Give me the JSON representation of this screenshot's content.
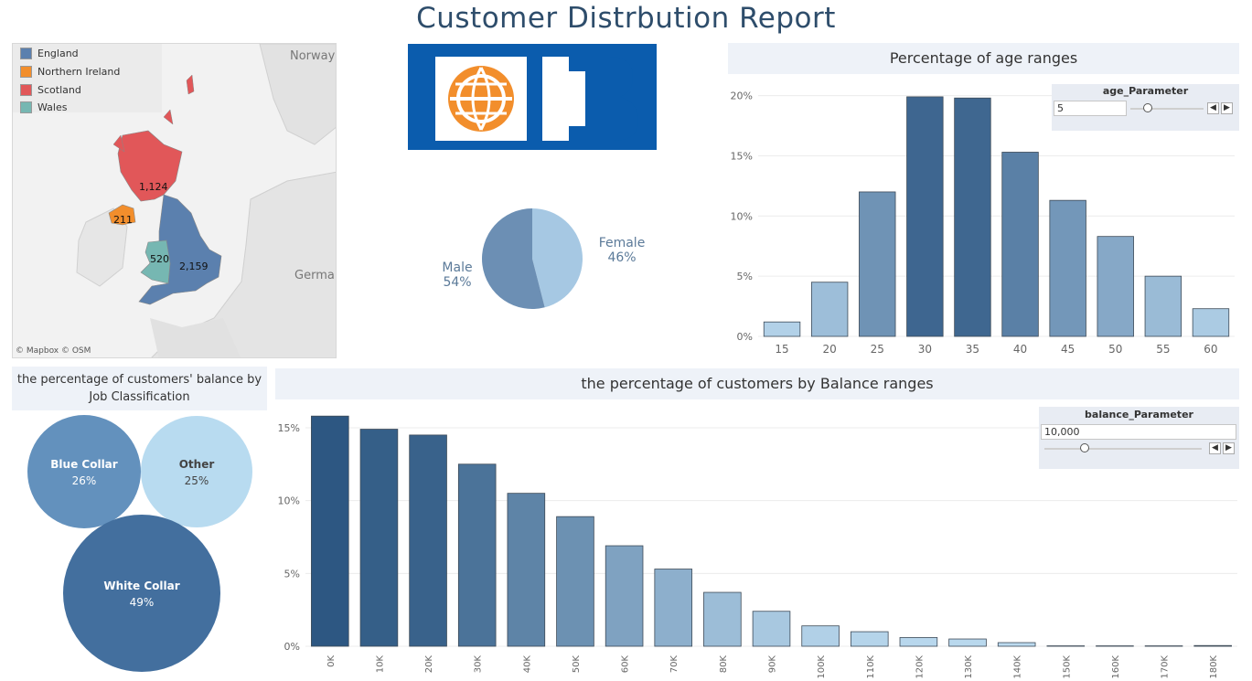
{
  "title": "Customer Distrbution Report",
  "colors": {
    "england": "#5b80ae",
    "northern_ireland": "#f28e2c",
    "scotland": "#e15759",
    "wales": "#76b7b2",
    "male": "#6c8fb4",
    "female": "#a6c8e3"
  },
  "map": {
    "legend": [
      {
        "label": "England",
        "color": "#5b80ae"
      },
      {
        "label": "Northern Ireland",
        "color": "#f28e2c"
      },
      {
        "label": "Scotland",
        "color": "#e15759"
      },
      {
        "label": "Wales",
        "color": "#76b7b2"
      }
    ],
    "values": {
      "scotland": "1,124",
      "northern_ireland": "211",
      "wales": "520",
      "england": "2,159"
    },
    "places": {
      "norway": "Norway",
      "germany": "Germa"
    },
    "credit": "© Mapbox  © OSM"
  },
  "gender": {
    "male": {
      "label": "Male",
      "pct": "54%",
      "value": 54
    },
    "female": {
      "label": "Female",
      "pct": "46%",
      "value": 46
    }
  },
  "age_chart": {
    "header": "Percentage of age ranges",
    "parameter": {
      "name": "age_Parameter",
      "value": "5"
    }
  },
  "job_chart": {
    "header": "the percentage of customers' balance by Job Classification",
    "bubbles": [
      {
        "label": "Blue Collar",
        "pct": "26%"
      },
      {
        "label": "Other",
        "pct": "25%"
      },
      {
        "label": "White Collar",
        "pct": "49%"
      }
    ]
  },
  "balance_chart": {
    "header": "the percentage of customers by Balance ranges",
    "parameter": {
      "name": "balance_Parameter",
      "value": "10,000"
    }
  },
  "chart_data": [
    {
      "type": "pie",
      "labels": [
        "Male",
        "Female"
      ],
      "values": [
        54,
        46
      ]
    },
    {
      "type": "bar",
      "title": "Percentage of age ranges",
      "categories": [
        "15",
        "20",
        "25",
        "30",
        "35",
        "40",
        "45",
        "50",
        "55",
        "60"
      ],
      "values": [
        1.2,
        4.5,
        12.0,
        19.9,
        19.8,
        15.3,
        11.3,
        8.3,
        5.0,
        2.3
      ],
      "yticks": [
        "0%",
        "5%",
        "10%",
        "15%",
        "20%"
      ],
      "ylim": [
        0,
        20.5
      ]
    },
    {
      "type": "bubble",
      "categories": [
        "Blue Collar",
        "Other",
        "White Collar"
      ],
      "values": [
        26,
        25,
        49
      ]
    },
    {
      "type": "bar",
      "title": "the percentage of customers by Balance ranges",
      "categories": [
        "0K",
        "10K",
        "20K",
        "30K",
        "40K",
        "50K",
        "60K",
        "70K",
        "80K",
        "90K",
        "100K",
        "110K",
        "120K",
        "130K",
        "140K",
        "150K",
        "160K",
        "170K",
        "180K"
      ],
      "values": [
        15.8,
        14.9,
        14.5,
        12.5,
        10.5,
        8.9,
        6.9,
        5.3,
        3.7,
        2.4,
        1.4,
        1.0,
        0.6,
        0.5,
        0.25,
        0.03,
        0.03,
        0.03,
        0.05
      ],
      "yticks": [
        "0%",
        "5%",
        "10%",
        "15%"
      ],
      "ylim": [
        0,
        16
      ]
    }
  ]
}
